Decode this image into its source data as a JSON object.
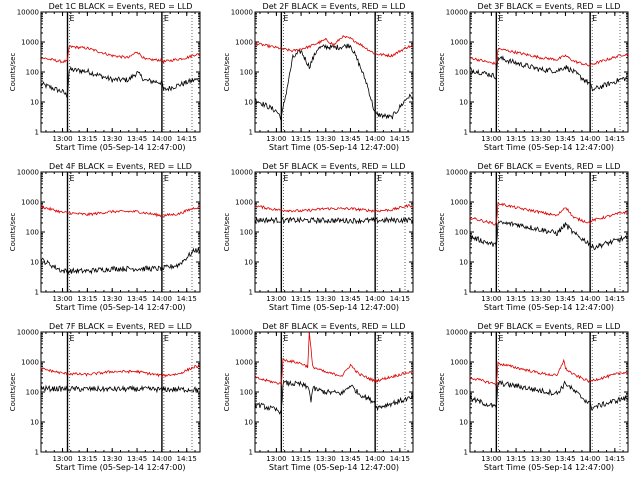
{
  "figure": {
    "ylabel": "Counts/sec",
    "xlabel": "Start Time (05-Sep-14 12:47:00)",
    "y_ticks": [
      "1",
      "10",
      "100",
      "1000",
      "10000"
    ],
    "x_ticks": [
      "13:00",
      "13:15",
      "13:30",
      "13:45",
      "14:00",
      "14:15"
    ],
    "marker_label": "E",
    "series_colors": {
      "events": "#000000",
      "lld": "#dd0000"
    }
  },
  "chart_data": [
    {
      "type": "line",
      "title": "Det 1C BLACK = Events, RED = LLD",
      "xlabel": "Start Time (05-Sep-14 12:47:00)",
      "ylabel": "Counts/sec",
      "y_scale": "log",
      "ylim": [
        1,
        10000
      ],
      "xlim": [
        "12:47",
        "14:23"
      ],
      "event_lines": [
        "13:03",
        "14:00"
      ],
      "series": [
        {
          "color": "black",
          "x": [
            "12:47",
            "13:00",
            "13:03",
            "13:04",
            "13:15",
            "13:30",
            "13:40",
            "13:45",
            "13:50",
            "14:00",
            "14:01",
            "14:15",
            "14:20"
          ],
          "values": [
            40,
            22,
            16,
            120,
            105,
            55,
            55,
            95,
            52,
            45,
            25,
            45,
            55
          ]
        },
        {
          "color": "red",
          "x": [
            "12:47",
            "13:00",
            "13:03",
            "13:04",
            "13:15",
            "13:30",
            "13:40",
            "13:45",
            "13:50",
            "14:00",
            "14:01",
            "14:15",
            "14:20"
          ],
          "values": [
            300,
            220,
            230,
            700,
            620,
            350,
            300,
            480,
            260,
            250,
            220,
            300,
            380
          ]
        }
      ]
    },
    {
      "type": "line",
      "title": "Det 2F BLACK = Events, RED = LLD",
      "xlabel": "Start Time (05-Sep-14 12:47:00)",
      "ylabel": "Counts/sec",
      "y_scale": "log",
      "ylim": [
        1,
        10000
      ],
      "xlim": [
        "12:47",
        "14:23"
      ],
      "event_lines": [
        "13:03",
        "14:00"
      ],
      "series": [
        {
          "color": "black",
          "x": [
            "12:47",
            "13:00",
            "13:03",
            "13:10",
            "13:15",
            "13:20",
            "13:25",
            "13:30",
            "13:35",
            "13:40",
            "13:45",
            "13:50",
            "13:55",
            "14:00",
            "14:10",
            "14:20"
          ],
          "values": [
            12,
            5,
            3,
            300,
            500,
            150,
            600,
            700,
            650,
            700,
            800,
            200,
            40,
            4,
            3,
            15
          ]
        },
        {
          "color": "red",
          "x": [
            "12:47",
            "13:00",
            "13:10",
            "13:20",
            "13:30",
            "13:35",
            "13:40",
            "13:45",
            "13:50",
            "14:00",
            "14:10",
            "14:20"
          ],
          "values": [
            900,
            650,
            500,
            700,
            1200,
            800,
            1500,
            1300,
            900,
            400,
            350,
            700
          ]
        }
      ]
    },
    {
      "type": "line",
      "title": "Det 3F BLACK = Events, RED = LLD",
      "xlabel": "Start Time (05-Sep-14 12:47:00)",
      "ylabel": "Counts/sec",
      "y_scale": "log",
      "ylim": [
        1,
        10000
      ],
      "xlim": [
        "12:47",
        "14:23"
      ],
      "event_lines": [
        "13:03",
        "14:00"
      ],
      "series": [
        {
          "color": "black",
          "x": [
            "12:47",
            "13:00",
            "13:03",
            "13:04",
            "13:15",
            "13:30",
            "13:40",
            "13:45",
            "13:50",
            "14:00",
            "14:01",
            "14:20"
          ],
          "values": [
            120,
            80,
            70,
            300,
            200,
            120,
            110,
            150,
            100,
            40,
            25,
            60
          ]
        },
        {
          "color": "red",
          "x": [
            "12:47",
            "13:00",
            "13:03",
            "13:04",
            "13:15",
            "13:30",
            "13:40",
            "13:45",
            "13:50",
            "14:00",
            "14:01",
            "14:20"
          ],
          "values": [
            300,
            200,
            190,
            600,
            450,
            300,
            260,
            350,
            230,
            160,
            180,
            380
          ]
        }
      ]
    },
    {
      "type": "line",
      "title": "Det 4F BLACK = Events, RED = LLD",
      "xlabel": "Start Time (05-Sep-14 12:47:00)",
      "ylabel": "Counts/sec",
      "y_scale": "log",
      "ylim": [
        1,
        10000
      ],
      "xlim": [
        "12:47",
        "14:23"
      ],
      "event_lines": [
        "13:03",
        "14:00"
      ],
      "series": [
        {
          "color": "black",
          "x": [
            "12:47",
            "13:00",
            "13:15",
            "13:30",
            "13:45",
            "14:00",
            "14:10",
            "14:20"
          ],
          "values": [
            12,
            5,
            5,
            6,
            6,
            6,
            8,
            25
          ]
        },
        {
          "color": "red",
          "x": [
            "12:47",
            "13:00",
            "13:15",
            "13:30",
            "13:45",
            "14:00",
            "14:10",
            "14:20"
          ],
          "values": [
            700,
            450,
            380,
            480,
            480,
            350,
            400,
            650
          ]
        }
      ]
    },
    {
      "type": "line",
      "title": "Det 5F BLACK = Events, RED = LLD",
      "xlabel": "Start Time (05-Sep-14 12:47:00)",
      "ylabel": "Counts/sec",
      "y_scale": "log",
      "ylim": [
        1,
        10000
      ],
      "xlim": [
        "12:47",
        "14:23"
      ],
      "event_lines": [
        "13:03",
        "14:00"
      ],
      "series": [
        {
          "color": "black",
          "x": [
            "12:47",
            "13:15",
            "13:45",
            "14:20"
          ],
          "values": [
            250,
            245,
            240,
            250
          ]
        },
        {
          "color": "red",
          "x": [
            "12:47",
            "13:00",
            "13:15",
            "13:30",
            "13:45",
            "14:00",
            "14:10",
            "14:20"
          ],
          "values": [
            750,
            550,
            500,
            600,
            600,
            500,
            550,
            750
          ]
        }
      ]
    },
    {
      "type": "line",
      "title": "Det 6F BLACK = Events, RED = LLD",
      "xlabel": "Start Time (05-Sep-14 12:47:00)",
      "ylabel": "Counts/sec",
      "y_scale": "log",
      "ylim": [
        1,
        10000
      ],
      "xlim": [
        "12:47",
        "14:23"
      ],
      "event_lines": [
        "13:03",
        "14:00"
      ],
      "series": [
        {
          "color": "black",
          "x": [
            "12:47",
            "13:00",
            "13:03",
            "13:04",
            "13:15",
            "13:30",
            "13:40",
            "13:45",
            "13:50",
            "14:00",
            "14:01",
            "14:20"
          ],
          "values": [
            70,
            40,
            35,
            200,
            180,
            120,
            90,
            180,
            90,
            40,
            30,
            60
          ]
        },
        {
          "color": "red",
          "x": [
            "12:47",
            "13:00",
            "13:03",
            "13:04",
            "13:15",
            "13:30",
            "13:40",
            "13:45",
            "13:50",
            "14:00",
            "14:01",
            "14:20"
          ],
          "values": [
            300,
            200,
            180,
            900,
            650,
            450,
            350,
            700,
            300,
            200,
            240,
            450
          ]
        }
      ]
    },
    {
      "type": "line",
      "title": "Det 7F BLACK = Events, RED = LLD",
      "xlabel": "Start Time (05-Sep-14 12:47:00)",
      "ylabel": "Counts/sec",
      "y_scale": "log",
      "ylim": [
        1,
        10000
      ],
      "xlim": [
        "12:47",
        "14:23"
      ],
      "event_lines": [
        "13:03",
        "14:00"
      ],
      "series": [
        {
          "color": "black",
          "x": [
            "12:47",
            "13:15",
            "13:45",
            "14:20"
          ],
          "values": [
            130,
            125,
            125,
            120
          ]
        },
        {
          "color": "red",
          "x": [
            "12:47",
            "13:00",
            "13:15",
            "13:30",
            "13:45",
            "14:00",
            "14:10",
            "14:20"
          ],
          "values": [
            600,
            420,
            380,
            480,
            480,
            350,
            400,
            700
          ]
        }
      ]
    },
    {
      "type": "line",
      "title": "Det 8F BLACK = Events, RED = LLD",
      "xlabel": "Start Time (05-Sep-14 12:47:00)",
      "ylabel": "Counts/sec",
      "y_scale": "log",
      "ylim": [
        1,
        10000
      ],
      "xlim": [
        "12:47",
        "14:23"
      ],
      "event_lines": [
        "13:03",
        "14:00"
      ],
      "series": [
        {
          "color": "black",
          "x": [
            "12:47",
            "13:00",
            "13:03",
            "13:04",
            "13:15",
            "13:20",
            "13:21",
            "13:22",
            "13:30",
            "13:40",
            "13:45",
            "13:50",
            "14:00",
            "14:01",
            "14:20"
          ],
          "values": [
            40,
            25,
            22,
            200,
            180,
            130,
            45,
            130,
            100,
            90,
            170,
            90,
            45,
            30,
            60
          ]
        },
        {
          "color": "red",
          "x": [
            "12:47",
            "13:00",
            "13:03",
            "13:04",
            "13:15",
            "13:19",
            "13:20",
            "13:22",
            "13:30",
            "13:40",
            "13:45",
            "13:50",
            "14:00",
            "14:01",
            "14:20"
          ],
          "values": [
            300,
            200,
            190,
            1200,
            900,
            700,
            10000,
            700,
            450,
            350,
            800,
            400,
            230,
            240,
            450
          ]
        }
      ]
    },
    {
      "type": "line",
      "title": "Det 9F BLACK = Events, RED = LLD",
      "xlabel": "Start Time (05-Sep-14 12:47:00)",
      "ylabel": "Counts/sec",
      "y_scale": "log",
      "ylim": [
        1,
        10000
      ],
      "xlim": [
        "12:47",
        "14:23"
      ],
      "event_lines": [
        "13:03",
        "14:00"
      ],
      "series": [
        {
          "color": "black",
          "x": [
            "12:47",
            "13:00",
            "13:03",
            "13:04",
            "13:15",
            "13:30",
            "13:40",
            "13:45",
            "13:50",
            "14:00",
            "14:01",
            "14:20"
          ],
          "values": [
            60,
            35,
            30,
            200,
            160,
            110,
            90,
            200,
            110,
            40,
            30,
            60
          ]
        },
        {
          "color": "red",
          "x": [
            "12:47",
            "13:00",
            "13:03",
            "13:04",
            "13:15",
            "13:30",
            "13:40",
            "13:44",
            "13:45",
            "13:50",
            "14:00",
            "14:01",
            "14:20"
          ],
          "values": [
            300,
            200,
            180,
            900,
            650,
            420,
            350,
            1200,
            600,
            380,
            220,
            240,
            450
          ]
        }
      ]
    }
  ]
}
